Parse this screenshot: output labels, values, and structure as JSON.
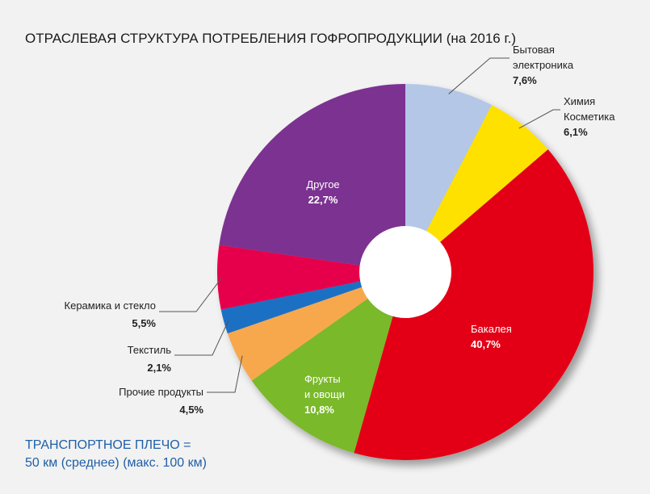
{
  "chart_data": {
    "type": "pie",
    "title": "ОТРАСЛЕВАЯ СТРУКТУРА ПОТРЕБЛЕНИЯ ГОФРОПРОДУКЦИИ (на 2016 г.)",
    "slices": [
      {
        "label_lines": [
          "Бытовая",
          "электроника"
        ],
        "value": 7.6,
        "value_label": "7,6%",
        "color": "#b4c7e7"
      },
      {
        "label_lines": [
          "Химия",
          "Косметика"
        ],
        "value": 6.1,
        "value_label": "6,1%",
        "color": "#ffe100"
      },
      {
        "label_lines": [
          "Бакалея"
        ],
        "value": 40.7,
        "value_label": "40,7%",
        "color": "#e30613"
      },
      {
        "label_lines": [
          "Фрукты",
          "и овощи"
        ],
        "value": 10.8,
        "value_label": "10,8%",
        "color": "#7ab929"
      },
      {
        "label_lines": [
          "Прочие продукты"
        ],
        "value": 4.5,
        "value_label": "4,5%",
        "color": "#f7a84e"
      },
      {
        "label_lines": [
          "Текстиль"
        ],
        "value": 2.1,
        "value_label": "2,1%",
        "color": "#1d6fc4"
      },
      {
        "label_lines": [
          "Керамика и стекло"
        ],
        "value": 5.5,
        "value_label": "5,5%",
        "color": "#e6004c"
      },
      {
        "label_lines": [
          "Другое"
        ],
        "value": 22.7,
        "value_label": "22,7%",
        "color": "#7b3191"
      }
    ]
  },
  "note": {
    "line1": "ТРАНСПОРТНОЕ ПЛЕЧО =",
    "line2": "50 км (среднее) (макс. 100 км)"
  }
}
